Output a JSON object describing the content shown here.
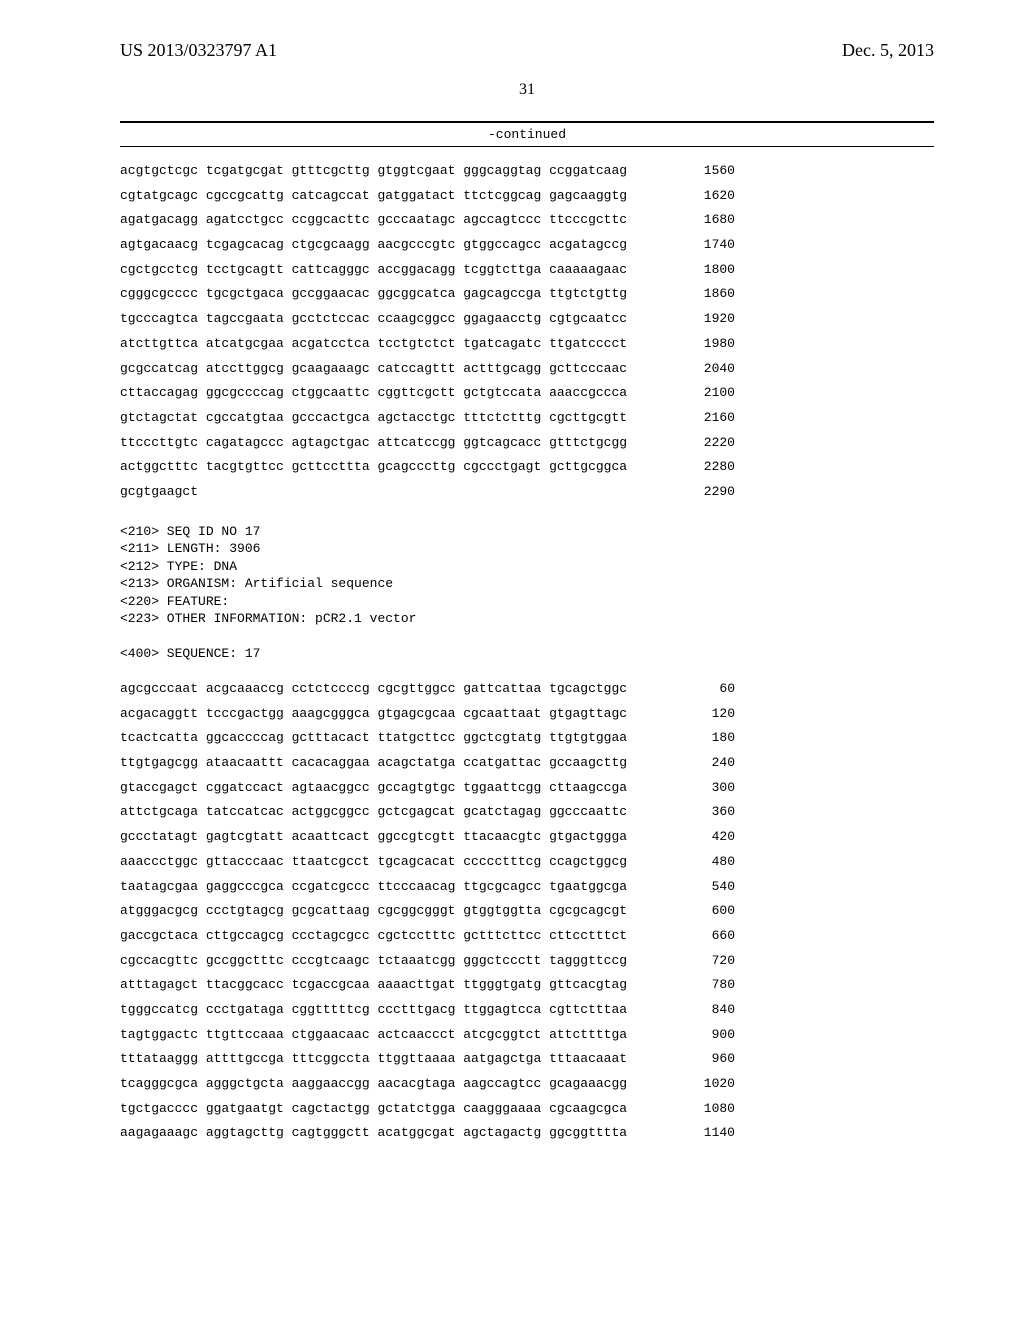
{
  "header": {
    "patent_number": "US 2013/0323797 A1",
    "date": "Dec. 5, 2013"
  },
  "page_number": "31",
  "continued_label": "-continued",
  "seq1": {
    "rows": [
      {
        "t": "acgtgctcgc tcgatgcgat gtttcgcttg gtggtcgaat gggcaggtag ccggatcaag",
        "p": "1560"
      },
      {
        "t": "cgtatgcagc cgccgcattg catcagccat gatggatact ttctcggcag gagcaaggtg",
        "p": "1620"
      },
      {
        "t": "agatgacagg agatcctgcc ccggcacttc gcccaatagc agccagtccc ttcccgcttc",
        "p": "1680"
      },
      {
        "t": "agtgacaacg tcgagcacag ctgcgcaagg aacgcccgtc gtggccagcc acgatagccg",
        "p": "1740"
      },
      {
        "t": "cgctgcctcg tcctgcagtt cattcagggc accggacagg tcggtcttga caaaaagaac",
        "p": "1800"
      },
      {
        "t": "cgggcgcccc tgcgctgaca gccggaacac ggcggcatca gagcagccga ttgtctgttg",
        "p": "1860"
      },
      {
        "t": "tgcccagtca tagccgaata gcctctccac ccaagcggcc ggagaacctg cgtgcaatcc",
        "p": "1920"
      },
      {
        "t": "atcttgttca atcatgcgaa acgatcctca tcctgtctct tgatcagatc ttgatcccct",
        "p": "1980"
      },
      {
        "t": "gcgccatcag atccttggcg gcaagaaagc catccagttt actttgcagg gcttcccaac",
        "p": "2040"
      },
      {
        "t": "cttaccagag ggcgccccag ctggcaattc cggttcgctt gctgtccata aaaccgccca",
        "p": "2100"
      },
      {
        "t": "gtctagctat cgccatgtaa gcccactgca agctacctgc tttctctttg cgcttgcgtt",
        "p": "2160"
      },
      {
        "t": "ttcccttgtc cagatagccc agtagctgac attcatccgg ggtcagcacc gtttctgcgg",
        "p": "2220"
      },
      {
        "t": "actggctttc tacgtgttcc gcttccttta gcagcccttg cgccctgagt gcttgcggca",
        "p": "2280"
      },
      {
        "t": "gcgtgaagct",
        "p": "2290"
      }
    ]
  },
  "meta": {
    "lines": [
      "<210> SEQ ID NO 17",
      "<211> LENGTH: 3906",
      "<212> TYPE: DNA",
      "<213> ORGANISM: Artificial sequence",
      "<220> FEATURE:",
      "<223> OTHER INFORMATION: pCR2.1 vector",
      "",
      "<400> SEQUENCE: 17"
    ]
  },
  "seq2": {
    "rows": [
      {
        "t": "agcgcccaat acgcaaaccg cctctccccg cgcgttggcc gattcattaa tgcagctggc",
        "p": "60"
      },
      {
        "t": "acgacaggtt tcccgactgg aaagcgggca gtgagcgcaa cgcaattaat gtgagttagc",
        "p": "120"
      },
      {
        "t": "tcactcatta ggcaccccag gctttacact ttatgcttcc ggctcgtatg ttgtgtggaa",
        "p": "180"
      },
      {
        "t": "ttgtgagcgg ataacaattt cacacaggaa acagctatga ccatgattac gccaagcttg",
        "p": "240"
      },
      {
        "t": "gtaccgagct cggatccact agtaacggcc gccagtgtgc tggaattcgg cttaagccga",
        "p": "300"
      },
      {
        "t": "attctgcaga tatccatcac actggcggcc gctcgagcat gcatctagag ggcccaattc",
        "p": "360"
      },
      {
        "t": "gccctatagt gagtcgtatt acaattcact ggccgtcgtt ttacaacgtc gtgactggga",
        "p": "420"
      },
      {
        "t": "aaaccctggc gttacccaac ttaatcgcct tgcagcacat ccccctttcg ccagctggcg",
        "p": "480"
      },
      {
        "t": "taatagcgaa gaggcccgca ccgatcgccc ttcccaacag ttgcgcagcc tgaatggcga",
        "p": "540"
      },
      {
        "t": "atgggacgcg ccctgtagcg gcgcattaag cgcggcgggt gtggtggtta cgcgcagcgt",
        "p": "600"
      },
      {
        "t": "gaccgctaca cttgccagcg ccctagcgcc cgctcctttc gctttcttcc cttcctttct",
        "p": "660"
      },
      {
        "t": "cgccacgttc gccggctttc cccgtcaagc tctaaatcgg gggctccctt tagggttccg",
        "p": "720"
      },
      {
        "t": "atttagagct ttacggcacc tcgaccgcaa aaaacttgat ttgggtgatg gttcacgtag",
        "p": "780"
      },
      {
        "t": "tgggccatcg ccctgataga cggtttttcg ccctttgacg ttggagtcca cgttctttaa",
        "p": "840"
      },
      {
        "t": "tagtggactc ttgttccaaa ctggaacaac actcaaccct atcgcggtct attcttttga",
        "p": "900"
      },
      {
        "t": "tttataaggg attttgccga tttcggccta ttggttaaaa aatgagctga tttaacaaat",
        "p": "960"
      },
      {
        "t": "tcagggcgca agggctgcta aaggaaccgg aacacgtaga aagccagtcc gcagaaacgg",
        "p": "1020"
      },
      {
        "t": "tgctgacccc ggatgaatgt cagctactgg gctatctgga caagggaaaa cgcaagcgca",
        "p": "1080"
      },
      {
        "t": "aagagaaagc aggtagcttg cagtgggctt acatggcgat agctagactg ggcggtttta",
        "p": "1140"
      }
    ]
  }
}
